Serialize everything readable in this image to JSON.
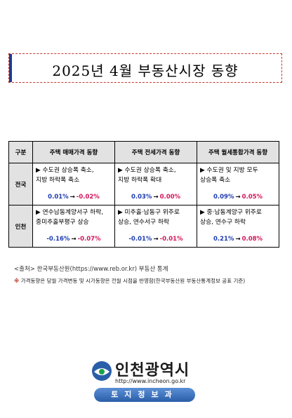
{
  "title": "2025년 4월 부동산시장 동향",
  "table": {
    "headers": [
      "구분",
      "주택 매매가격 동향",
      "주택 전세가격 동향",
      "주택 월세통합가격 동향"
    ],
    "rows": [
      {
        "region": "전국",
        "cells": [
          {
            "desc": [
              "▶ 수도권 상승폭 축소,",
              "지방 하락폭 축소"
            ],
            "from": "0.01%",
            "arrow": "→",
            "to": "-0.02%"
          },
          {
            "desc": [
              "▶ 수도권 상승폭 축소,",
              "지방 하락폭 확대"
            ],
            "from": "0.03%",
            "arrow": "→",
            "to": "0.00%"
          },
          {
            "desc": [
              "▶ 수도권 및 지방 모두",
              "상승폭 축소"
            ],
            "from": "0.09%",
            "arrow": "→",
            "to": "0.05%"
          }
        ]
      },
      {
        "region": "인천",
        "cells": [
          {
            "desc": [
              "▶ 연수남동계양서구 하락,",
              "중미추홀부평구 상승"
            ],
            "from": "-0.16%",
            "arrow": "→",
            "to": "-0.07%"
          },
          {
            "desc": [
              "▶ 미추홀·남동구 위주로",
              "상승, 연수서구 하락"
            ],
            "from": "-0.01%",
            "arrow": "→",
            "to": "-0.01%"
          },
          {
            "desc": [
              "▶ 중·남동계양구 위주로",
              "상승, 연수구 하락"
            ],
            "from": "0.21%",
            "arrow": "→",
            "to": "0.08%"
          }
        ]
      }
    ]
  },
  "source": "<출처> 한국부동산원(https://www.reb.or.kr) 부동산 통계",
  "note_mark": "※",
  "note": "가격동향은 당월 가격변동 및 시가동향은 전월 시점을 반영함(한국부동산원 부동산통계정보 공표 기준)",
  "logo": {
    "name": "인천광역시",
    "url": "http://www.incheon.go.kr"
  },
  "badge": "토지정보과",
  "colors": {
    "title_bar": "#1f3a93",
    "title_border": "#c0392b",
    "rate_from": "#1d3bb3",
    "rate_to": "#d4145a"
  }
}
